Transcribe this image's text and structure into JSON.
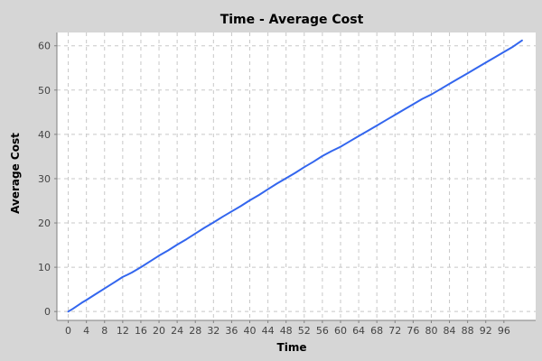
{
  "chart_data": {
    "type": "line",
    "title": "Time - Average Cost",
    "xlabel": "Time",
    "ylabel": "Average Cost",
    "xlim": [
      -2.5,
      103
    ],
    "ylim": [
      -2,
      63
    ],
    "x_ticks": [
      0,
      4,
      8,
      12,
      16,
      20,
      24,
      28,
      32,
      36,
      40,
      44,
      48,
      52,
      56,
      60,
      64,
      68,
      72,
      76,
      80,
      84,
      88,
      92,
      96
    ],
    "x_tick_labels": [
      "0",
      "4",
      "8",
      "12",
      "16",
      "20",
      "24",
      "28",
      "32",
      "36",
      "40",
      "44",
      "48",
      "52",
      "56",
      "60",
      "64",
      "68",
      "72",
      "76",
      "80",
      "84",
      "88",
      "92",
      "96"
    ],
    "y_ticks": [
      0,
      10,
      20,
      30,
      40,
      50,
      60
    ],
    "y_tick_labels": [
      "0",
      "10",
      "20",
      "30",
      "40",
      "50",
      "60"
    ],
    "grid": true,
    "background": "#ffffff",
    "series": [
      {
        "color": "#3366ee",
        "x": [
          0,
          1,
          2,
          3,
          4,
          6,
          8,
          10,
          12,
          13,
          14,
          16,
          18,
          20,
          22,
          24,
          26,
          28,
          30,
          32,
          34,
          36,
          38,
          40,
          42,
          44,
          46,
          48,
          50,
          52,
          54,
          56,
          58,
          60,
          62,
          64,
          66,
          68,
          70,
          72,
          74,
          76,
          78,
          80,
          82,
          84,
          86,
          88,
          90,
          92,
          94,
          96,
          98,
          100
        ],
        "y": [
          0,
          0.6,
          1.3,
          2.0,
          2.6,
          3.9,
          5.2,
          6.5,
          7.8,
          8.3,
          8.8,
          10.0,
          11.3,
          12.6,
          13.8,
          15.1,
          16.3,
          17.6,
          18.9,
          20.1,
          21.4,
          22.6,
          23.8,
          25.1,
          26.3,
          27.6,
          28.9,
          30.1,
          31.3,
          32.6,
          33.8,
          35.1,
          36.2,
          37.2,
          38.4,
          39.6,
          40.8,
          42.0,
          43.2,
          44.4,
          45.6,
          46.8,
          48.0,
          49.0,
          50.2,
          51.4,
          52.6,
          53.8,
          55.0,
          56.2,
          57.4,
          58.6,
          59.8,
          61.2
        ]
      }
    ]
  }
}
